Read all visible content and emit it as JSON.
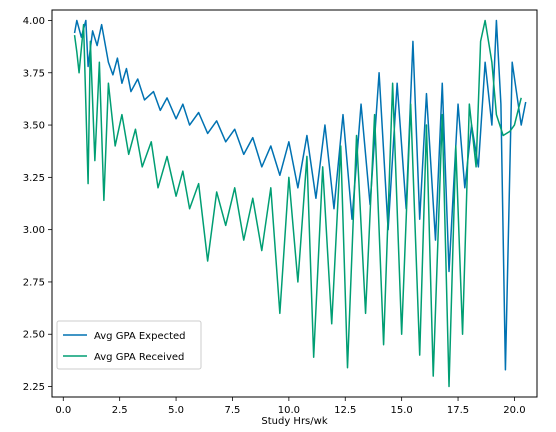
{
  "chart_data": {
    "type": "line",
    "title": "",
    "xlabel": "Study Hrs/wk",
    "ylabel": "",
    "xlim": [
      -0.5,
      21.0
    ],
    "ylim": [
      2.2,
      4.05
    ],
    "grid": false,
    "legend_position": "lower-left",
    "xticks": [
      0.0,
      2.5,
      5.0,
      7.5,
      10.0,
      12.5,
      15.0,
      17.5,
      20.0
    ],
    "xtick_labels": [
      "0.0",
      "2.5",
      "5.0",
      "7.5",
      "10.0",
      "12.5",
      "15.0",
      "17.5",
      "20.0"
    ],
    "yticks": [
      2.25,
      2.5,
      2.75,
      3.0,
      3.25,
      3.5,
      3.75,
      4.0
    ],
    "ytick_labels": [
      "2.25",
      "2.50",
      "2.75",
      "3.00",
      "3.25",
      "3.50",
      "3.75",
      "4.00"
    ],
    "series": [
      {
        "name": "Avg GPA Expected",
        "color": "#0072b2",
        "points": [
          [
            0.5,
            3.94
          ],
          [
            0.6,
            4.0
          ],
          [
            0.8,
            3.92
          ],
          [
            1.0,
            4.0
          ],
          [
            1.1,
            3.78
          ],
          [
            1.3,
            3.95
          ],
          [
            1.5,
            3.88
          ],
          [
            1.7,
            3.98
          ],
          [
            2.0,
            3.8
          ],
          [
            2.2,
            3.74
          ],
          [
            2.4,
            3.82
          ],
          [
            2.6,
            3.7
          ],
          [
            2.8,
            3.77
          ],
          [
            3.0,
            3.66
          ],
          [
            3.3,
            3.72
          ],
          [
            3.6,
            3.62
          ],
          [
            4.0,
            3.66
          ],
          [
            4.3,
            3.57
          ],
          [
            4.6,
            3.63
          ],
          [
            5.0,
            3.53
          ],
          [
            5.3,
            3.6
          ],
          [
            5.6,
            3.5
          ],
          [
            6.0,
            3.56
          ],
          [
            6.4,
            3.46
          ],
          [
            6.8,
            3.52
          ],
          [
            7.2,
            3.42
          ],
          [
            7.6,
            3.48
          ],
          [
            8.0,
            3.36
          ],
          [
            8.4,
            3.44
          ],
          [
            8.8,
            3.3
          ],
          [
            9.2,
            3.4
          ],
          [
            9.6,
            3.26
          ],
          [
            10.0,
            3.42
          ],
          [
            10.4,
            3.2
          ],
          [
            10.8,
            3.45
          ],
          [
            11.2,
            3.15
          ],
          [
            11.6,
            3.5
          ],
          [
            12.0,
            3.1
          ],
          [
            12.4,
            3.55
          ],
          [
            12.8,
            3.05
          ],
          [
            13.2,
            3.6
          ],
          [
            13.6,
            3.12
          ],
          [
            14.0,
            3.75
          ],
          [
            14.4,
            3.0
          ],
          [
            14.8,
            3.7
          ],
          [
            15.2,
            3.1
          ],
          [
            15.5,
            3.9
          ],
          [
            15.8,
            3.05
          ],
          [
            16.1,
            3.65
          ],
          [
            16.5,
            2.95
          ],
          [
            16.8,
            3.7
          ],
          [
            17.1,
            2.8
          ],
          [
            17.5,
            3.6
          ],
          [
            17.8,
            3.2
          ],
          [
            18.1,
            3.5
          ],
          [
            18.4,
            3.3
          ],
          [
            18.7,
            3.8
          ],
          [
            19.0,
            3.5
          ],
          [
            19.2,
            4.0
          ],
          [
            19.4,
            3.6
          ],
          [
            19.6,
            2.33
          ],
          [
            19.9,
            3.8
          ],
          [
            20.1,
            3.65
          ],
          [
            20.3,
            3.5
          ],
          [
            20.5,
            3.61
          ]
        ]
      },
      {
        "name": "Avg GPA Received",
        "color": "#009e73",
        "points": [
          [
            0.5,
            3.93
          ],
          [
            0.6,
            3.85
          ],
          [
            0.7,
            3.75
          ],
          [
            0.9,
            3.98
          ],
          [
            1.0,
            3.6
          ],
          [
            1.1,
            3.22
          ],
          [
            1.2,
            3.9
          ],
          [
            1.4,
            3.33
          ],
          [
            1.6,
            3.8
          ],
          [
            1.8,
            3.14
          ],
          [
            2.0,
            3.7
          ],
          [
            2.3,
            3.4
          ],
          [
            2.6,
            3.55
          ],
          [
            2.9,
            3.36
          ],
          [
            3.2,
            3.48
          ],
          [
            3.5,
            3.3
          ],
          [
            3.9,
            3.42
          ],
          [
            4.2,
            3.2
          ],
          [
            4.6,
            3.35
          ],
          [
            5.0,
            3.16
          ],
          [
            5.3,
            3.28
          ],
          [
            5.6,
            3.1
          ],
          [
            6.0,
            3.22
          ],
          [
            6.4,
            2.85
          ],
          [
            6.8,
            3.18
          ],
          [
            7.2,
            3.02
          ],
          [
            7.6,
            3.2
          ],
          [
            8.0,
            2.95
          ],
          [
            8.4,
            3.15
          ],
          [
            8.8,
            2.9
          ],
          [
            9.2,
            3.2
          ],
          [
            9.6,
            2.6
          ],
          [
            10.0,
            3.25
          ],
          [
            10.4,
            2.75
          ],
          [
            10.8,
            3.35
          ],
          [
            11.1,
            2.39
          ],
          [
            11.5,
            3.3
          ],
          [
            11.9,
            2.55
          ],
          [
            12.3,
            3.4
          ],
          [
            12.6,
            2.34
          ],
          [
            13.0,
            3.45
          ],
          [
            13.4,
            2.6
          ],
          [
            13.8,
            3.55
          ],
          [
            14.2,
            2.45
          ],
          [
            14.6,
            3.7
          ],
          [
            15.0,
            2.5
          ],
          [
            15.4,
            3.6
          ],
          [
            15.8,
            2.4
          ],
          [
            16.1,
            3.5
          ],
          [
            16.4,
            2.3
          ],
          [
            16.8,
            3.55
          ],
          [
            17.1,
            2.25
          ],
          [
            17.4,
            3.4
          ],
          [
            17.7,
            2.5
          ],
          [
            18.0,
            3.6
          ],
          [
            18.3,
            3.3
          ],
          [
            18.5,
            3.9
          ],
          [
            18.7,
            4.0
          ],
          [
            19.0,
            3.8
          ],
          [
            19.2,
            3.55
          ],
          [
            19.5,
            3.45
          ],
          [
            19.8,
            3.47
          ],
          [
            20.0,
            3.5
          ],
          [
            20.3,
            3.63
          ]
        ]
      }
    ]
  }
}
